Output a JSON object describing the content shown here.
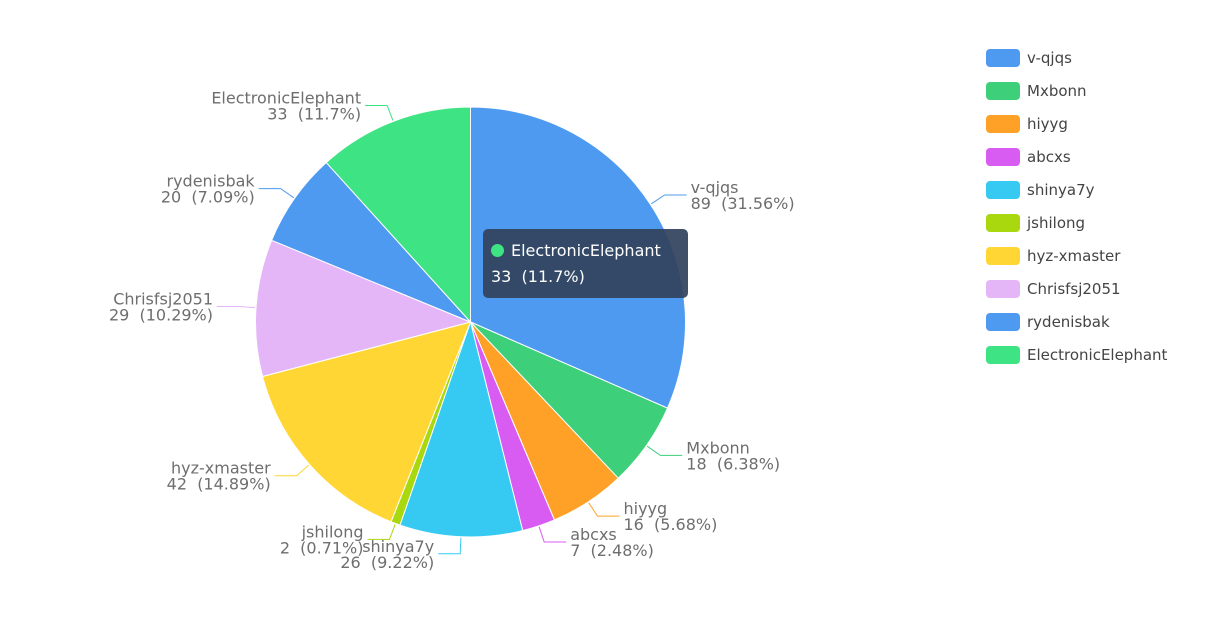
{
  "chart_data": {
    "type": "pie",
    "start_angle_deg": 90,
    "direction": "clockwise",
    "slices": [
      {
        "name": "v-qjqs",
        "value": 89,
        "label": "89  (31.56%)",
        "color": "#4e9af1"
      },
      {
        "name": "Mxbonn",
        "value": 18,
        "label": "18  (6.38%)",
        "color": "#3ecf7a"
      },
      {
        "name": "hiyyg",
        "value": 16,
        "label": "16  (5.68%)",
        "color": "#ffa127"
      },
      {
        "name": "abcxs",
        "value": 7,
        "label": "7  (2.48%)",
        "color": "#d95cf2"
      },
      {
        "name": "shinya7y",
        "value": 26,
        "label": "26  (9.22%)",
        "color": "#36c9f2"
      },
      {
        "name": "jshilong",
        "value": 2,
        "label": "2  (0.71%)",
        "color": "#aad80e"
      },
      {
        "name": "hyz-xmaster",
        "value": 42,
        "label": "42  (14.89%)",
        "color": "#ffd633"
      },
      {
        "name": "Chrisfsj2051",
        "value": 29,
        "label": "29  (10.29%)",
        "color": "#e5b6f7"
      },
      {
        "name": "rydenisbak",
        "value": 20,
        "label": "20  (7.09%)",
        "color": "#4e9af1"
      },
      {
        "name": "ElectronicElephant",
        "value": 33,
        "label": "33  (11.7%)",
        "color": "#3ee384"
      }
    ],
    "legend_position": "top-right"
  },
  "tooltip": {
    "name": "ElectronicElephant",
    "value_text": "33  (11.7%)",
    "color": "#3ee384"
  }
}
